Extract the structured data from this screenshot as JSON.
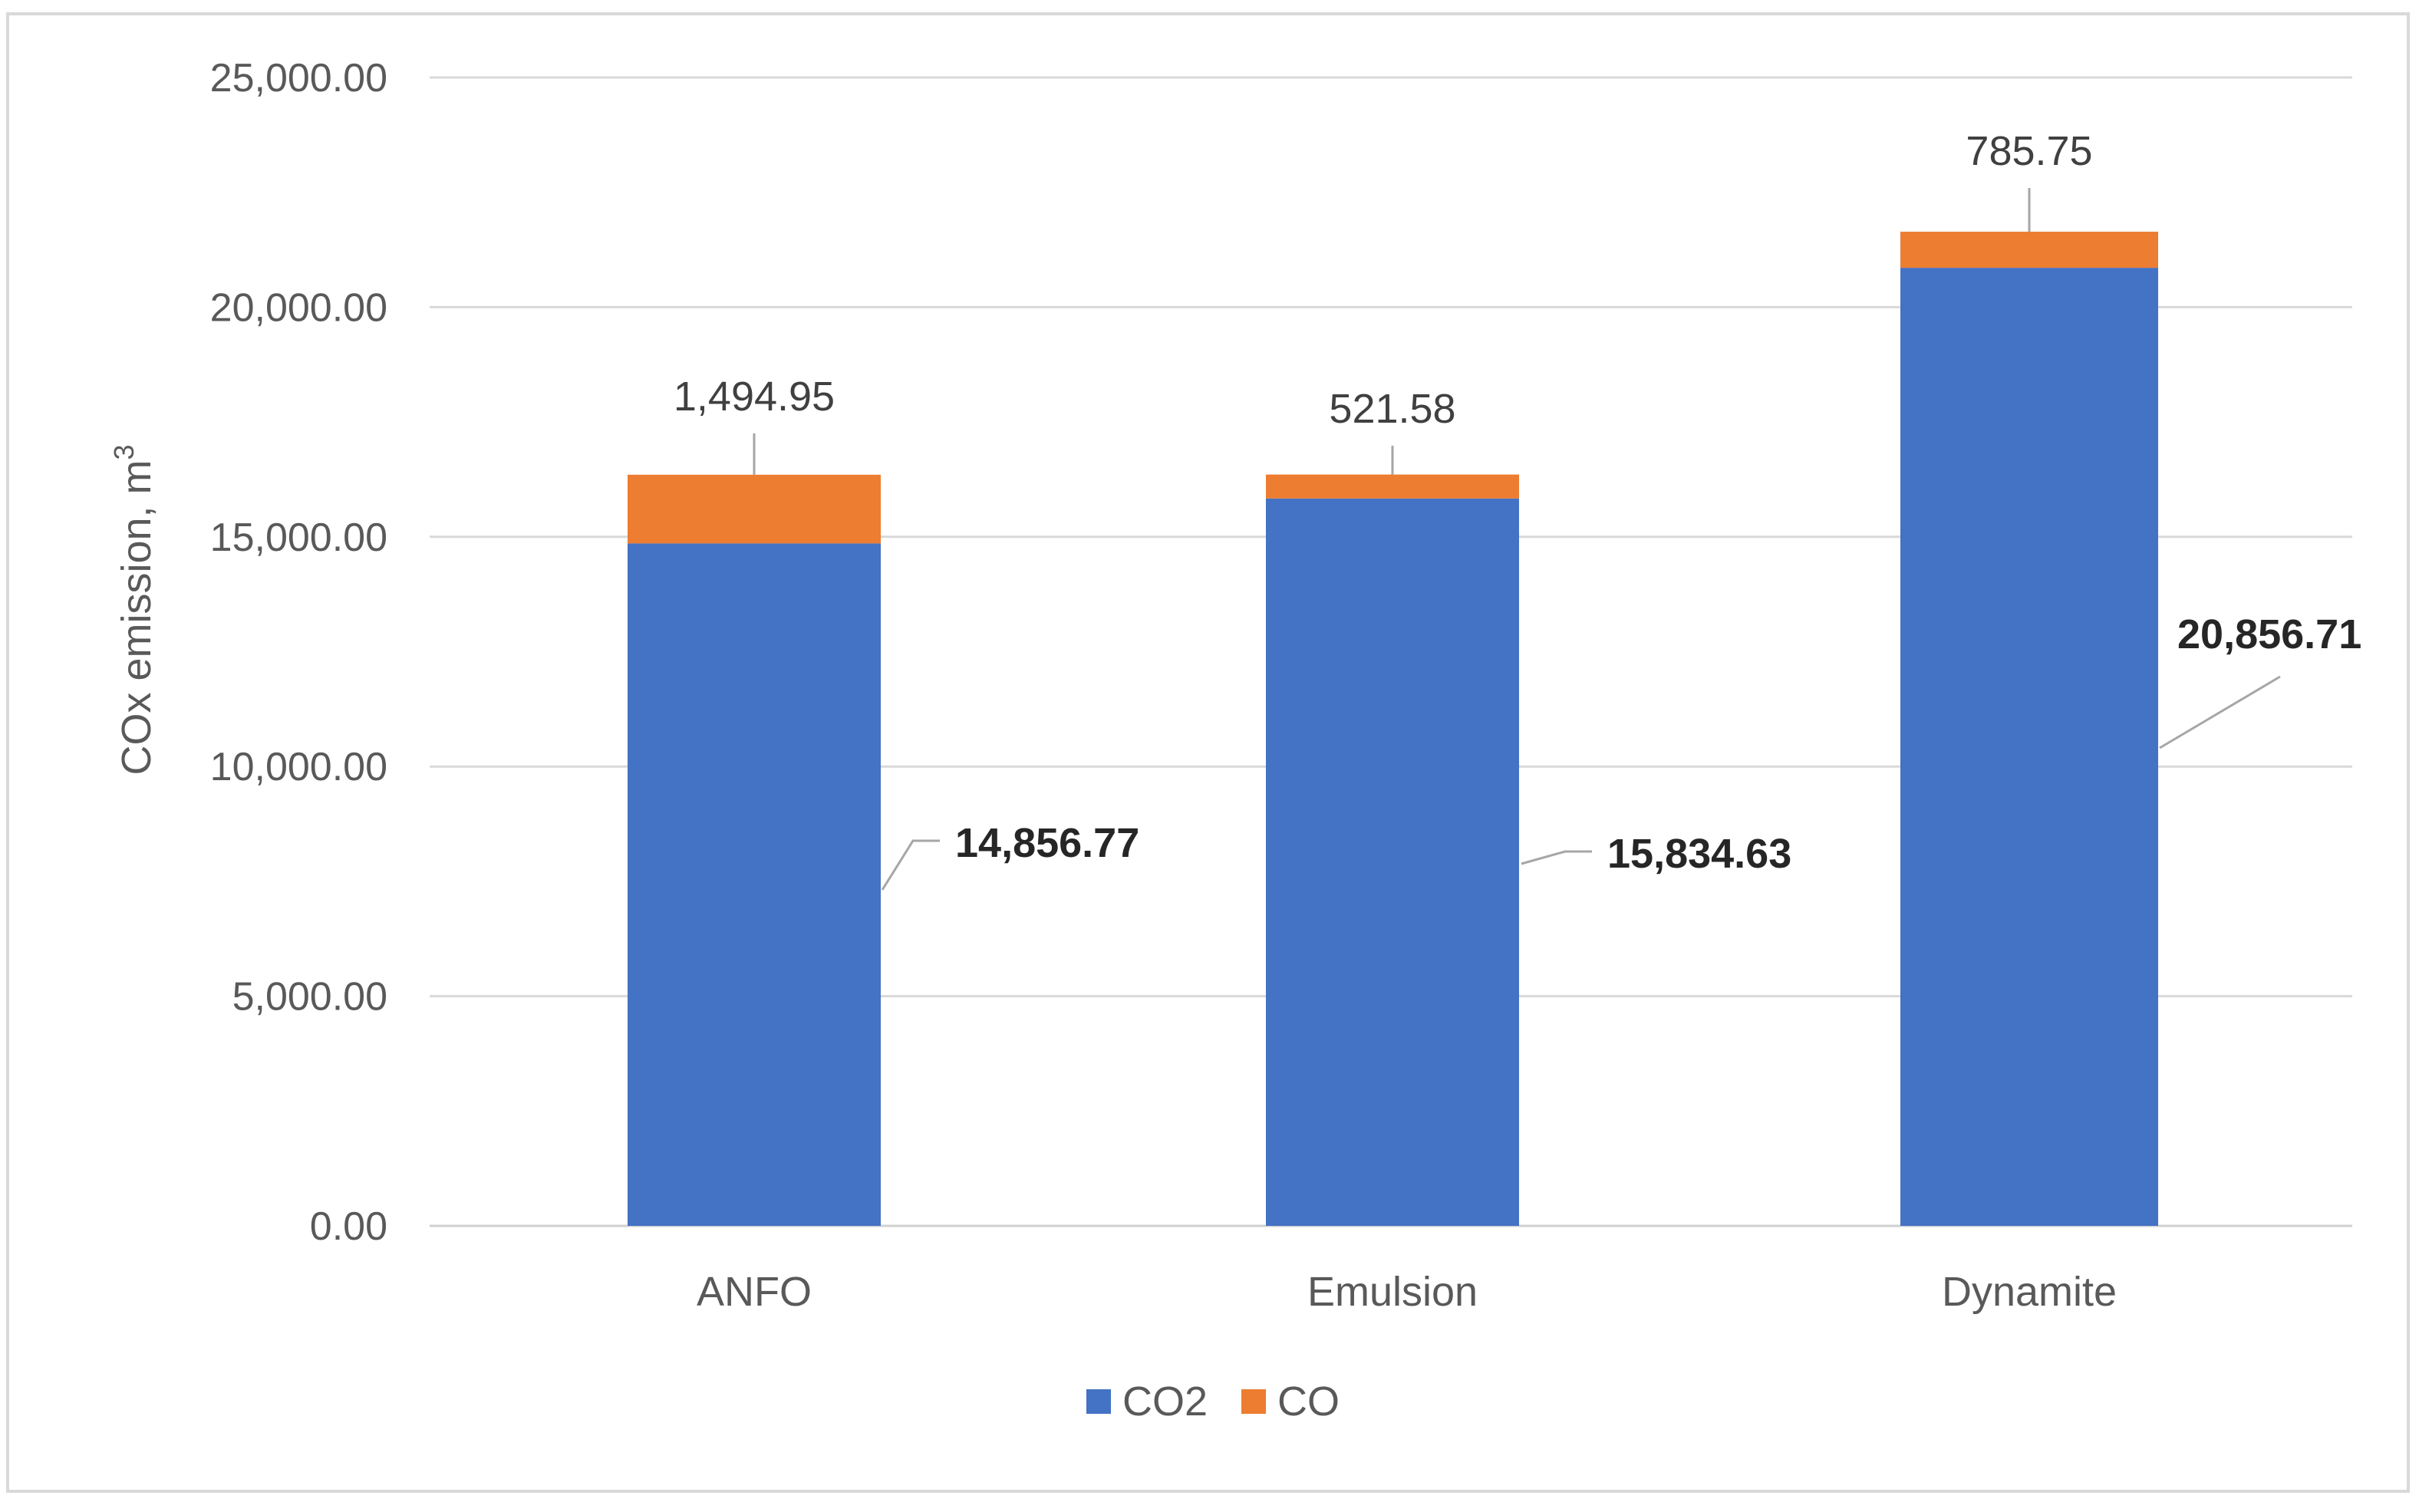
{
  "chart_data": {
    "type": "bar",
    "stacked": true,
    "categories": [
      "ANFO",
      "Emulsion",
      "Dynamite"
    ],
    "series": [
      {
        "name": "CO2",
        "color": "#4472C4",
        "values": [
          14856.77,
          15834.63,
          20856.71
        ],
        "labels": [
          "14,856.77",
          "15,834.63",
          "20,856.71"
        ]
      },
      {
        "name": "CO",
        "color": "#ED7D31",
        "values": [
          1494.95,
          521.58,
          785.75
        ],
        "labels": [
          "1,494.95",
          "521.58",
          "785.75"
        ]
      }
    ],
    "ylabel": "COx emission, m",
    "ylabel_sup": "3",
    "ylim": [
      0,
      25000
    ],
    "yticks": [
      0,
      5000,
      10000,
      15000,
      20000,
      25000
    ],
    "ytick_labels": [
      "0.00",
      "5,000.00",
      "10,000.00",
      "15,000.00",
      "20,000.00",
      "25,000.00"
    ],
    "grid": true,
    "legend_position": "bottom"
  }
}
